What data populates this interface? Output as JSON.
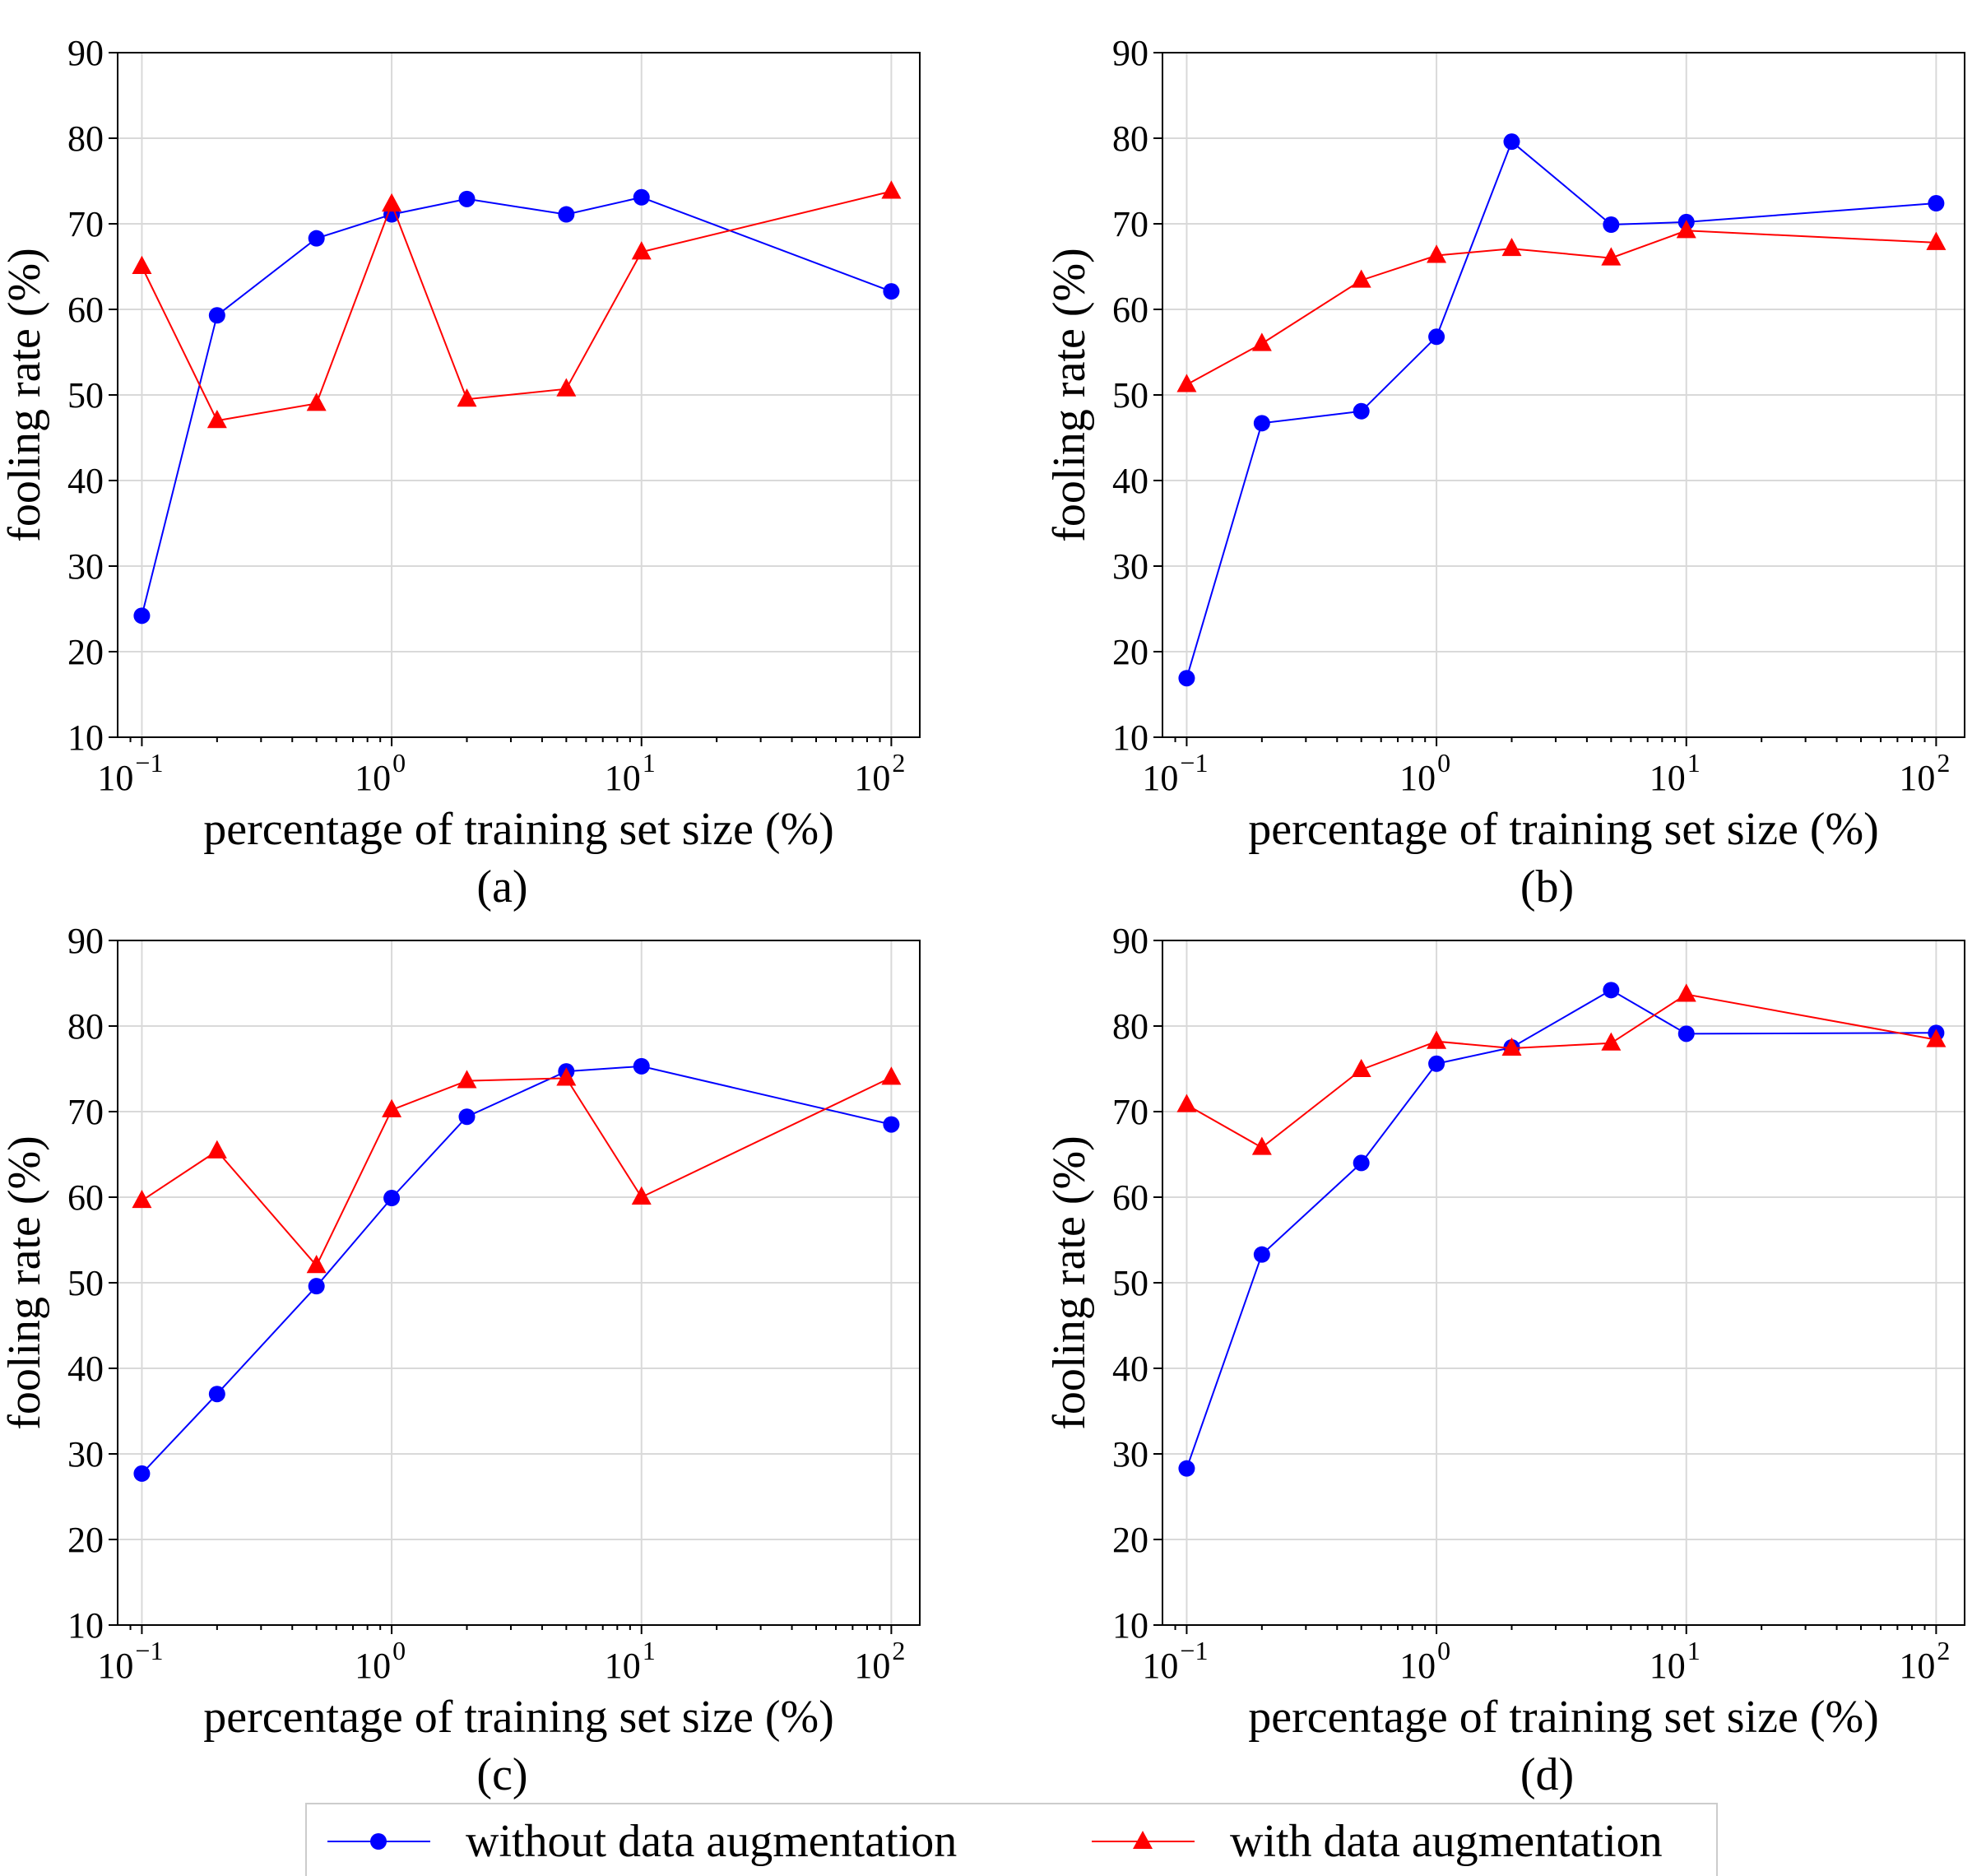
{
  "chart_data": [
    {
      "type": "line",
      "panel_label": "(a)",
      "xlabel": "percentage of training set size (%)",
      "ylabel": "fooling rate (%)",
      "xscale": "log",
      "xlim": [
        0.08,
        130
      ],
      "ylim": [
        10,
        90
      ],
      "grid": true,
      "x_ticks": [
        {
          "value": 0.1,
          "exp": "−1"
        },
        {
          "value": 1,
          "exp": "0"
        },
        {
          "value": 10,
          "exp": "1"
        },
        {
          "value": 100,
          "exp": "2"
        }
      ],
      "y_ticks": [
        10,
        20,
        30,
        40,
        50,
        60,
        70,
        80,
        90
      ],
      "x": [
        0.1,
        0.2,
        0.5,
        1,
        2,
        5,
        10,
        100
      ],
      "series": [
        {
          "name": "without data augmentation",
          "color": "#0000ff",
          "marker": "circle",
          "values": [
            24.2,
            59.3,
            68.3,
            71.1,
            72.9,
            71.1,
            73.1,
            62.1
          ]
        },
        {
          "name": "with data augmentation",
          "color": "#ff0000",
          "marker": "triangle",
          "values": [
            65.0,
            47.0,
            49.0,
            72.3,
            49.5,
            50.7,
            66.7,
            73.8
          ]
        }
      ]
    },
    {
      "type": "line",
      "panel_label": "(b)",
      "xlabel": "percentage of training set size (%)",
      "ylabel": "fooling rate (%)",
      "xscale": "log",
      "xlim": [
        0.08,
        130
      ],
      "ylim": [
        10,
        90
      ],
      "grid": true,
      "x_ticks": [
        {
          "value": 0.1,
          "exp": "−1"
        },
        {
          "value": 1,
          "exp": "0"
        },
        {
          "value": 10,
          "exp": "1"
        },
        {
          "value": 100,
          "exp": "2"
        }
      ],
      "y_ticks": [
        10,
        20,
        30,
        40,
        50,
        60,
        70,
        80,
        90
      ],
      "x": [
        0.1,
        0.2,
        0.5,
        1,
        2,
        5,
        10,
        100
      ],
      "series": [
        {
          "name": "without data augmentation",
          "color": "#0000ff",
          "marker": "circle",
          "values": [
            16.9,
            46.7,
            48.1,
            56.8,
            79.6,
            69.9,
            70.2,
            72.4
          ]
        },
        {
          "name": "with data augmentation",
          "color": "#ff0000",
          "marker": "triangle",
          "values": [
            51.2,
            56.0,
            63.4,
            66.3,
            67.1,
            66.0,
            69.2,
            67.8
          ]
        }
      ]
    },
    {
      "type": "line",
      "panel_label": "(c)",
      "xlabel": "percentage of training set size (%)",
      "ylabel": "fooling rate (%)",
      "xscale": "log",
      "xlim": [
        0.08,
        130
      ],
      "ylim": [
        10,
        90
      ],
      "grid": true,
      "x_ticks": [
        {
          "value": 0.1,
          "exp": "−1"
        },
        {
          "value": 1,
          "exp": "0"
        },
        {
          "value": 10,
          "exp": "1"
        },
        {
          "value": 100,
          "exp": "2"
        }
      ],
      "y_ticks": [
        10,
        20,
        30,
        40,
        50,
        60,
        70,
        80,
        90
      ],
      "x": [
        0.1,
        0.2,
        0.5,
        1,
        2,
        5,
        10,
        100
      ],
      "series": [
        {
          "name": "without data augmentation",
          "color": "#0000ff",
          "marker": "circle",
          "values": [
            27.7,
            37.0,
            49.6,
            59.9,
            69.4,
            74.7,
            75.3,
            68.5
          ]
        },
        {
          "name": "with data augmentation",
          "color": "#ff0000",
          "marker": "triangle",
          "values": [
            59.6,
            65.4,
            52.0,
            70.2,
            73.6,
            73.9,
            60.0,
            74.0
          ]
        }
      ]
    },
    {
      "type": "line",
      "panel_label": "(d)",
      "xlabel": "percentage of training set size (%)",
      "ylabel": "fooling rate (%)",
      "xscale": "log",
      "xlim": [
        0.08,
        130
      ],
      "ylim": [
        10,
        90
      ],
      "grid": true,
      "x_ticks": [
        {
          "value": 0.1,
          "exp": "−1"
        },
        {
          "value": 1,
          "exp": "0"
        },
        {
          "value": 10,
          "exp": "1"
        },
        {
          "value": 100,
          "exp": "2"
        }
      ],
      "y_ticks": [
        10,
        20,
        30,
        40,
        50,
        60,
        70,
        80,
        90
      ],
      "x": [
        0.1,
        0.2,
        0.5,
        1,
        2,
        5,
        10,
        100
      ],
      "series": [
        {
          "name": "without data augmentation",
          "color": "#0000ff",
          "marker": "circle",
          "values": [
            28.3,
            53.3,
            64.0,
            75.6,
            77.5,
            84.2,
            79.1,
            79.2
          ]
        },
        {
          "name": "with data augmentation",
          "color": "#ff0000",
          "marker": "triangle",
          "values": [
            70.8,
            65.8,
            74.9,
            78.2,
            77.4,
            78.0,
            83.7,
            78.4
          ]
        }
      ]
    }
  ],
  "legend": {
    "position": "bottom-center",
    "entries": [
      {
        "label": "without data augmentation",
        "color": "#0000ff",
        "marker": "circle"
      },
      {
        "label": "with data augmentation",
        "color": "#ff0000",
        "marker": "triangle"
      }
    ]
  }
}
